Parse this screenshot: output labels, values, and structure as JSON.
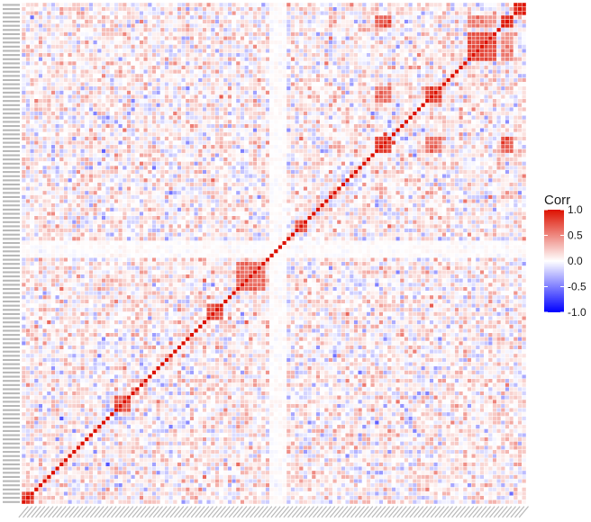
{
  "chart_data": {
    "type": "heatmap",
    "title": "",
    "xlabel": "",
    "ylabel": "",
    "n_variables": 120,
    "value_range": [
      -1,
      1
    ],
    "diagonal_value": 1.0,
    "legend": {
      "title": "Corr",
      "placement": "right",
      "ticks": [
        1.0,
        0.5,
        0.0,
        -0.5,
        -1.0
      ],
      "tick_labels": [
        "1.0",
        "0.5",
        "0.0",
        "-0.5",
        "-1.0"
      ]
    },
    "colors": {
      "low": "#0000ff",
      "mid": "#ffffff",
      "high": "#dd1100",
      "cell_border": "#ffffff"
    },
    "strong_blocks": [
      {
        "from": 1,
        "to": 3,
        "value": 0.8
      },
      {
        "from": 23,
        "to": 26,
        "value": 0.7
      },
      {
        "from": 45,
        "to": 48,
        "value": 0.7
      },
      {
        "from": 52,
        "to": 58,
        "value": 0.6
      },
      {
        "from": 66,
        "to": 68,
        "value": 0.7
      },
      {
        "from": 85,
        "to": 88,
        "value": 0.85
      },
      {
        "from": 97,
        "to": 100,
        "value": 0.8
      },
      {
        "from": 107,
        "to": 113,
        "value": 0.75
      },
      {
        "from": 115,
        "to": 117,
        "value": 0.85
      },
      {
        "from": 118,
        "to": 120,
        "value": 0.95
      }
    ],
    "off_diagonal_blocks": [
      {
        "rows": [
          85,
          88
        ],
        "cols": [
          97,
          100
        ],
        "value": 0.6
      },
      {
        "rows": [
          115,
          117
        ],
        "cols": [
          85,
          88
        ],
        "value": 0.7
      },
      {
        "rows": [
          107,
          113
        ],
        "cols": [
          115,
          117
        ],
        "value": 0.5
      }
    ],
    "weak_band_variables": [
      60,
      61,
      62,
      63
    ],
    "background_correlation_sd": 0.18
  }
}
